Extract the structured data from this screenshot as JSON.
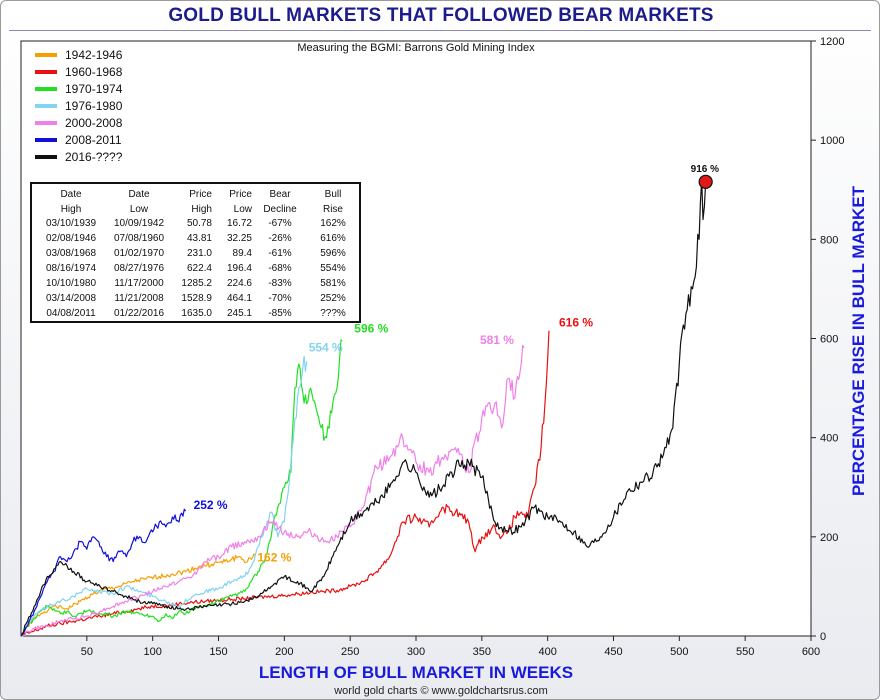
{
  "header": {
    "title": "GOLD BULL MARKETS THAT FOLLOWED BEAR MARKETS",
    "subtitle": "Measuring the BGMI: Barrons Gold Mining Index",
    "credit": "world gold charts © www.goldchartsrus.com"
  },
  "axes": {
    "xlabel": "LENGTH OF BULL MARKET IN WEEKS",
    "ylabel": "PERCENTAGE RISE IN BULL MARKET"
  },
  "colors": {
    "title": "#1c1c8c",
    "axis_label": "#1a1adc",
    "marker": "#e01818"
  },
  "stats_table": {
    "headers": [
      [
        "Date",
        "High"
      ],
      [
        "Date",
        "Low"
      ],
      [
        "Price",
        "High"
      ],
      [
        "Price",
        "Low"
      ],
      [
        "Bear",
        "Decline"
      ],
      [
        "Bull",
        "Rise"
      ]
    ],
    "rows": [
      [
        "03/10/1939",
        "10/09/1942",
        "50.78",
        "16.72",
        "-67%",
        "162%"
      ],
      [
        "02/08/1946",
        "07/08/1960",
        "43.81",
        "32.25",
        "-26%",
        "616%"
      ],
      [
        "03/08/1968",
        "01/02/1970",
        "231.0",
        "89.4",
        "-61%",
        "596%"
      ],
      [
        "08/16/1974",
        "08/27/1976",
        "622.4",
        "196.4",
        "-68%",
        "554%"
      ],
      [
        "10/10/1980",
        "11/17/2000",
        "1285.2",
        "224.6",
        "-83%",
        "581%"
      ],
      [
        "03/14/2008",
        "11/21/2008",
        "1528.9",
        "464.1",
        "-70%",
        "252%"
      ],
      [
        "04/08/2011",
        "01/22/2016",
        "1635.0",
        "245.1",
        "-85%",
        "???%"
      ]
    ]
  },
  "chart_data": {
    "type": "line",
    "title": "GOLD BULL MARKETS THAT FOLLOWED BEAR MARKETS",
    "subtitle": "Measuring the BGMI: Barrons Gold Mining Index",
    "xlabel": "LENGTH OF BULL MARKET IN WEEKS",
    "ylabel": "PERCENTAGE RISE IN BULL MARKET",
    "xlim": [
      0,
      600
    ],
    "ylim": [
      0,
      1200
    ],
    "x_ticks": [
      50,
      100,
      150,
      200,
      250,
      300,
      350,
      400,
      450,
      500,
      550,
      600
    ],
    "y_ticks": [
      0,
      200,
      400,
      600,
      800,
      1000,
      1200
    ],
    "y_axis_side": "right",
    "grid": false,
    "legend_position": "top-left",
    "series": [
      {
        "name": "1942-1946",
        "color": "#f5a000",
        "end_label": "162 %",
        "points": [
          [
            0,
            0
          ],
          [
            8,
            30
          ],
          [
            15,
            45
          ],
          [
            25,
            60
          ],
          [
            35,
            55
          ],
          [
            45,
            70
          ],
          [
            55,
            85
          ],
          [
            65,
            95
          ],
          [
            75,
            100
          ],
          [
            85,
            110
          ],
          [
            95,
            115
          ],
          [
            105,
            120
          ],
          [
            115,
            125
          ],
          [
            125,
            130
          ],
          [
            135,
            140
          ],
          [
            145,
            145
          ],
          [
            155,
            150
          ],
          [
            160,
            155
          ],
          [
            165,
            160
          ],
          [
            172,
            150
          ],
          [
            178,
            162
          ]
        ]
      },
      {
        "name": "1960-1968",
        "color": "#e81010",
        "end_label": "616 %",
        "points": [
          [
            0,
            0
          ],
          [
            10,
            10
          ],
          [
            20,
            20
          ],
          [
            30,
            25
          ],
          [
            40,
            30
          ],
          [
            50,
            35
          ],
          [
            60,
            40
          ],
          [
            70,
            45
          ],
          [
            80,
            50
          ],
          [
            90,
            55
          ],
          [
            100,
            60
          ],
          [
            110,
            62
          ],
          [
            120,
            65
          ],
          [
            130,
            68
          ],
          [
            140,
            70
          ],
          [
            150,
            72
          ],
          [
            160,
            74
          ],
          [
            170,
            75
          ],
          [
            180,
            78
          ],
          [
            190,
            80
          ],
          [
            200,
            82
          ],
          [
            210,
            85
          ],
          [
            220,
            88
          ],
          [
            230,
            90
          ],
          [
            240,
            92
          ],
          [
            250,
            100
          ],
          [
            260,
            110
          ],
          [
            270,
            130
          ],
          [
            280,
            160
          ],
          [
            290,
            230
          ],
          [
            300,
            240
          ],
          [
            310,
            220
          ],
          [
            320,
            260
          ],
          [
            330,
            250
          ],
          [
            340,
            230
          ],
          [
            345,
            170
          ],
          [
            350,
            200
          ],
          [
            360,
            220
          ],
          [
            365,
            200
          ],
          [
            370,
            210
          ],
          [
            375,
            240
          ],
          [
            380,
            250
          ],
          [
            385,
            240
          ],
          [
            390,
            300
          ],
          [
            395,
            380
          ],
          [
            398,
            470
          ],
          [
            400,
            560
          ],
          [
            401,
            616
          ]
        ]
      },
      {
        "name": "1970-1974",
        "color": "#22e022",
        "end_label": "596 %",
        "points": [
          [
            0,
            0
          ],
          [
            5,
            20
          ],
          [
            10,
            35
          ],
          [
            15,
            50
          ],
          [
            20,
            60
          ],
          [
            25,
            55
          ],
          [
            30,
            45
          ],
          [
            35,
            50
          ],
          [
            40,
            40
          ],
          [
            50,
            50
          ],
          [
            60,
            45
          ],
          [
            70,
            40
          ],
          [
            80,
            50
          ],
          [
            90,
            45
          ],
          [
            100,
            40
          ],
          [
            105,
            30
          ],
          [
            110,
            45
          ],
          [
            115,
            35
          ],
          [
            120,
            50
          ],
          [
            125,
            45
          ],
          [
            130,
            55
          ],
          [
            140,
            60
          ],
          [
            150,
            70
          ],
          [
            160,
            80
          ],
          [
            170,
            90
          ],
          [
            175,
            110
          ],
          [
            180,
            130
          ],
          [
            185,
            150
          ],
          [
            190,
            200
          ],
          [
            195,
            260
          ],
          [
            200,
            300
          ],
          [
            205,
            330
          ],
          [
            208,
            500
          ],
          [
            212,
            540
          ],
          [
            215,
            470
          ],
          [
            220,
            500
          ],
          [
            225,
            450
          ],
          [
            228,
            420
          ],
          [
            232,
            400
          ],
          [
            236,
            450
          ],
          [
            240,
            500
          ],
          [
            242,
            560
          ],
          [
            244,
            596
          ]
        ]
      },
      {
        "name": "1976-1980",
        "color": "#82d4f0",
        "end_label": "554 %",
        "points": [
          [
            0,
            0
          ],
          [
            5,
            25
          ],
          [
            10,
            40
          ],
          [
            20,
            60
          ],
          [
            30,
            70
          ],
          [
            40,
            80
          ],
          [
            50,
            95
          ],
          [
            60,
            90
          ],
          [
            70,
            85
          ],
          [
            80,
            100
          ],
          [
            90,
            90
          ],
          [
            100,
            80
          ],
          [
            110,
            70
          ],
          [
            120,
            60
          ],
          [
            130,
            80
          ],
          [
            140,
            90
          ],
          [
            150,
            95
          ],
          [
            160,
            110
          ],
          [
            170,
            120
          ],
          [
            175,
            140
          ],
          [
            180,
            180
          ],
          [
            185,
            220
          ],
          [
            190,
            250
          ],
          [
            195,
            200
          ],
          [
            200,
            230
          ],
          [
            205,
            350
          ],
          [
            210,
            480
          ],
          [
            214,
            540
          ],
          [
            217,
            554
          ]
        ]
      },
      {
        "name": "2000-2008",
        "color": "#f080e8",
        "end_label": "581 %",
        "points": [
          [
            0,
            0
          ],
          [
            10,
            15
          ],
          [
            20,
            20
          ],
          [
            30,
            30
          ],
          [
            40,
            35
          ],
          [
            50,
            40
          ],
          [
            60,
            50
          ],
          [
            70,
            60
          ],
          [
            80,
            70
          ],
          [
            90,
            80
          ],
          [
            100,
            90
          ],
          [
            110,
            100
          ],
          [
            120,
            110
          ],
          [
            130,
            120
          ],
          [
            140,
            150
          ],
          [
            150,
            160
          ],
          [
            160,
            180
          ],
          [
            170,
            190
          ],
          [
            180,
            200
          ],
          [
            190,
            230
          ],
          [
            200,
            210
          ],
          [
            210,
            200
          ],
          [
            220,
            210
          ],
          [
            230,
            190
          ],
          [
            240,
            200
          ],
          [
            250,
            220
          ],
          [
            260,
            260
          ],
          [
            270,
            340
          ],
          [
            280,
            360
          ],
          [
            290,
            400
          ],
          [
            300,
            350
          ],
          [
            310,
            330
          ],
          [
            320,
            360
          ],
          [
            330,
            380
          ],
          [
            340,
            330
          ],
          [
            350,
            440
          ],
          [
            360,
            470
          ],
          [
            365,
            420
          ],
          [
            370,
            520
          ],
          [
            375,
            480
          ],
          [
            380,
            550
          ],
          [
            382,
            581
          ]
        ]
      },
      {
        "name": "2008-2011",
        "color": "#1010d8",
        "end_label": "252 %",
        "points": [
          [
            0,
            0
          ],
          [
            5,
            20
          ],
          [
            10,
            50
          ],
          [
            15,
            80
          ],
          [
            20,
            110
          ],
          [
            25,
            130
          ],
          [
            30,
            160
          ],
          [
            35,
            150
          ],
          [
            40,
            170
          ],
          [
            45,
            190
          ],
          [
            50,
            175
          ],
          [
            55,
            200
          ],
          [
            60,
            180
          ],
          [
            65,
            160
          ],
          [
            70,
            150
          ],
          [
            75,
            170
          ],
          [
            80,
            160
          ],
          [
            85,
            190
          ],
          [
            90,
            200
          ],
          [
            95,
            190
          ],
          [
            100,
            210
          ],
          [
            105,
            230
          ],
          [
            110,
            220
          ],
          [
            115,
            240
          ],
          [
            120,
            230
          ],
          [
            125,
            252
          ]
        ]
      },
      {
        "name": "2016-????",
        "color": "#111111",
        "end_label": "916 %",
        "points": [
          [
            0,
            0
          ],
          [
            5,
            30
          ],
          [
            10,
            60
          ],
          [
            20,
            120
          ],
          [
            30,
            150
          ],
          [
            40,
            130
          ],
          [
            50,
            110
          ],
          [
            60,
            100
          ],
          [
            70,
            90
          ],
          [
            80,
            80
          ],
          [
            90,
            70
          ],
          [
            100,
            65
          ],
          [
            110,
            60
          ],
          [
            120,
            55
          ],
          [
            130,
            55
          ],
          [
            140,
            60
          ],
          [
            150,
            62
          ],
          [
            160,
            65
          ],
          [
            170,
            70
          ],
          [
            180,
            80
          ],
          [
            190,
            100
          ],
          [
            200,
            120
          ],
          [
            210,
            110
          ],
          [
            220,
            90
          ],
          [
            230,
            120
          ],
          [
            240,
            180
          ],
          [
            250,
            230
          ],
          [
            260,
            250
          ],
          [
            270,
            270
          ],
          [
            280,
            300
          ],
          [
            290,
            350
          ],
          [
            300,
            330
          ],
          [
            310,
            280
          ],
          [
            320,
            300
          ],
          [
            330,
            340
          ],
          [
            340,
            350
          ],
          [
            350,
            320
          ],
          [
            360,
            230
          ],
          [
            370,
            210
          ],
          [
            380,
            220
          ],
          [
            390,
            260
          ],
          [
            400,
            240
          ],
          [
            410,
            230
          ],
          [
            420,
            210
          ],
          [
            430,
            180
          ],
          [
            440,
            200
          ],
          [
            450,
            240
          ],
          [
            460,
            290
          ],
          [
            470,
            310
          ],
          [
            480,
            330
          ],
          [
            490,
            380
          ],
          [
            495,
            420
          ],
          [
            500,
            550
          ],
          [
            505,
            650
          ],
          [
            510,
            700
          ],
          [
            515,
            800
          ],
          [
            517,
            920
          ],
          [
            518,
            840
          ],
          [
            520,
            916
          ]
        ]
      }
    ],
    "annotation": {
      "label": "916 %",
      "x": 520,
      "y": 916
    }
  }
}
